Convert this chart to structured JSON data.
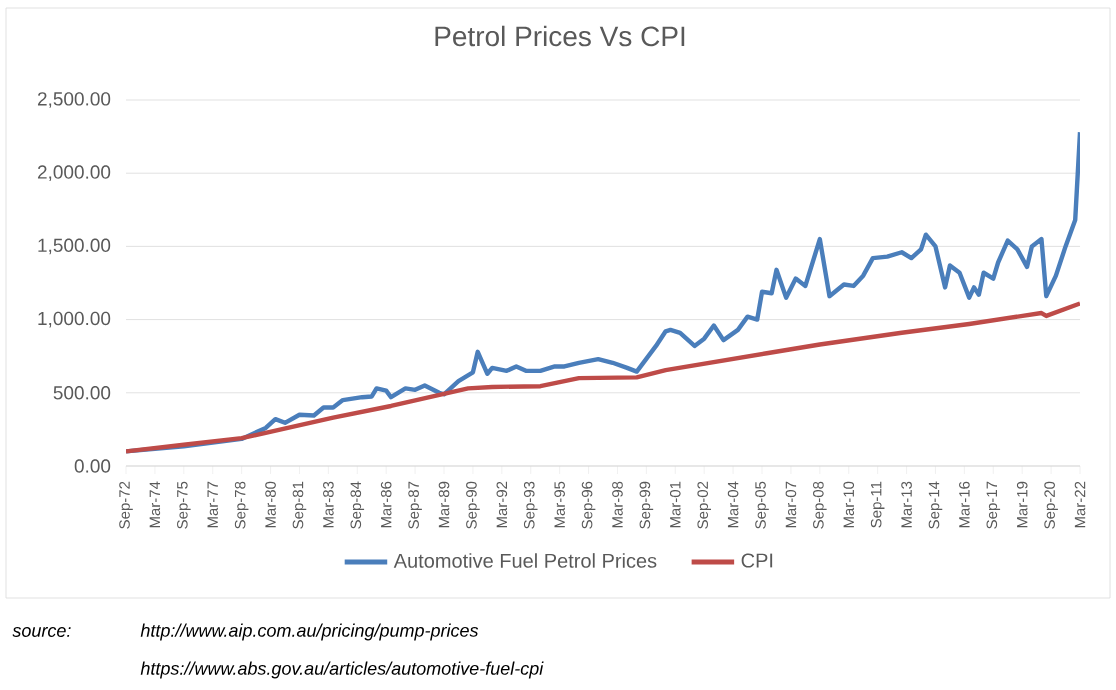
{
  "chart_data": {
    "type": "line",
    "title": "Petrol Prices Vs CPI",
    "xlim": [
      "1972-09",
      "2022-03"
    ],
    "ylim": [
      0,
      2500
    ],
    "xticks": [
      {
        "value": "1972-09",
        "label": "Sep-72"
      },
      {
        "value": "1974-03",
        "label": "Mar-74"
      },
      {
        "value": "1975-09",
        "label": "Sep-75"
      },
      {
        "value": "1977-03",
        "label": "Mar-77"
      },
      {
        "value": "1978-09",
        "label": "Sep-78"
      },
      {
        "value": "1980-03",
        "label": "Mar-80"
      },
      {
        "value": "1981-09",
        "label": "Sep-81"
      },
      {
        "value": "1983-03",
        "label": "Mar-83"
      },
      {
        "value": "1984-09",
        "label": "Sep-84"
      },
      {
        "value": "1986-03",
        "label": "Mar-86"
      },
      {
        "value": "1987-09",
        "label": "Sep-87"
      },
      {
        "value": "1989-03",
        "label": "Mar-89"
      },
      {
        "value": "1990-09",
        "label": "Sep-90"
      },
      {
        "value": "1992-03",
        "label": "Mar-92"
      },
      {
        "value": "1993-09",
        "label": "Sep-93"
      },
      {
        "value": "1995-03",
        "label": "Mar-95"
      },
      {
        "value": "1996-09",
        "label": "Sep-96"
      },
      {
        "value": "1998-03",
        "label": "Mar-98"
      },
      {
        "value": "1999-09",
        "label": "Sep-99"
      },
      {
        "value": "2001-03",
        "label": "Mar-01"
      },
      {
        "value": "2002-09",
        "label": "Sep-02"
      },
      {
        "value": "2004-03",
        "label": "Mar-04"
      },
      {
        "value": "2005-09",
        "label": "Sep-05"
      },
      {
        "value": "2007-03",
        "label": "Mar-07"
      },
      {
        "value": "2008-09",
        "label": "Sep-08"
      },
      {
        "value": "2010-03",
        "label": "Mar-10"
      },
      {
        "value": "2011-09",
        "label": "Sep-11"
      },
      {
        "value": "2013-03",
        "label": "Mar-13"
      },
      {
        "value": "2014-09",
        "label": "Sep-14"
      },
      {
        "value": "2016-03",
        "label": "Mar-16"
      },
      {
        "value": "2017-09",
        "label": "Sep-17"
      },
      {
        "value": "2019-03",
        "label": "Mar-19"
      },
      {
        "value": "2020-09",
        "label": "Sep-20"
      },
      {
        "value": "2022-03",
        "label": "Mar-22"
      }
    ],
    "yticks": [
      {
        "value": 0,
        "label": "0.00"
      },
      {
        "value": 500,
        "label": "500.00"
      },
      {
        "value": 1000,
        "label": "1,000.00"
      },
      {
        "value": 1500,
        "label": "1,500.00"
      },
      {
        "value": 2000,
        "label": "2,000.00"
      },
      {
        "value": 2500,
        "label": "2,500.00"
      }
    ],
    "grid": "y",
    "legend": "bottom",
    "marker": "none",
    "line_style": "solid",
    "series": [
      {
        "name": "Automotive Fuel Petrol Prices",
        "color": "#4a7ebb",
        "x": [
          "1972-09",
          "1975-09",
          "1978-09",
          "1979-12",
          "1980-06",
          "1980-12",
          "1981-09",
          "1982-06",
          "1982-12",
          "1983-06",
          "1983-12",
          "1984-12",
          "1985-06",
          "1985-09",
          "1986-03",
          "1986-06",
          "1987-03",
          "1987-09",
          "1988-03",
          "1988-12",
          "1989-03",
          "1989-12",
          "1990-09",
          "1990-12",
          "1991-06",
          "1991-09",
          "1992-06",
          "1992-12",
          "1993-06",
          "1994-03",
          "1994-12",
          "1995-06",
          "1996-03",
          "1997-03",
          "1997-12",
          "1998-09",
          "1999-03",
          "2000-03",
          "2000-09",
          "2000-12",
          "2001-06",
          "2002-03",
          "2002-09",
          "2003-03",
          "2003-09",
          "2004-06",
          "2004-12",
          "2005-06",
          "2005-09",
          "2006-03",
          "2006-06",
          "2006-12",
          "2007-06",
          "2007-12",
          "2008-09",
          "2009-03",
          "2009-12",
          "2010-06",
          "2010-12",
          "2011-06",
          "2012-03",
          "2012-12",
          "2013-06",
          "2013-12",
          "2014-03",
          "2014-09",
          "2015-03",
          "2015-06",
          "2015-12",
          "2016-06",
          "2016-09",
          "2016-12",
          "2017-03",
          "2017-09",
          "2017-12",
          "2018-06",
          "2018-12",
          "2019-06",
          "2019-09",
          "2020-03",
          "2020-06",
          "2020-12",
          "2021-06",
          "2021-12",
          "2022-03"
        ],
        "values": [
          100,
          135,
          185,
          260,
          320,
          295,
          350,
          345,
          400,
          400,
          450,
          470,
          475,
          530,
          515,
          470,
          530,
          520,
          550,
          500,
          490,
          580,
          640,
          780,
          630,
          670,
          650,
          680,
          650,
          650,
          680,
          680,
          705,
          730,
          705,
          670,
          645,
          820,
          920,
          930,
          910,
          820,
          870,
          960,
          860,
          930,
          1020,
          1000,
          1190,
          1180,
          1340,
          1150,
          1280,
          1230,
          1550,
          1160,
          1240,
          1230,
          1300,
          1420,
          1430,
          1460,
          1420,
          1480,
          1580,
          1500,
          1220,
          1370,
          1320,
          1150,
          1220,
          1170,
          1320,
          1280,
          1390,
          1540,
          1480,
          1360,
          1500,
          1550,
          1160,
          1300,
          1500,
          1680,
          2280
        ]
      },
      {
        "name": "CPI",
        "color": "#be4b48",
        "x": [
          "1972-09",
          "1975-09",
          "1978-09",
          "1983-06",
          "1986-06",
          "1990-06",
          "1991-09",
          "1994-03",
          "1996-03",
          "1999-03",
          "2000-09",
          "2005-12",
          "2008-09",
          "2012-12",
          "2016-06",
          "2020-03",
          "2020-06",
          "2022-03"
        ],
        "values": [
          100,
          145,
          190,
          330,
          410,
          530,
          540,
          545,
          600,
          605,
          655,
          770,
          830,
          910,
          970,
          1045,
          1025,
          1110
        ]
      }
    ],
    "annotations": [
      "source:",
      "http://www.aip.com.au/pricing/pump-prices",
      "https://www.abs.gov.au/articles/automotive-fuel-cpi"
    ]
  }
}
